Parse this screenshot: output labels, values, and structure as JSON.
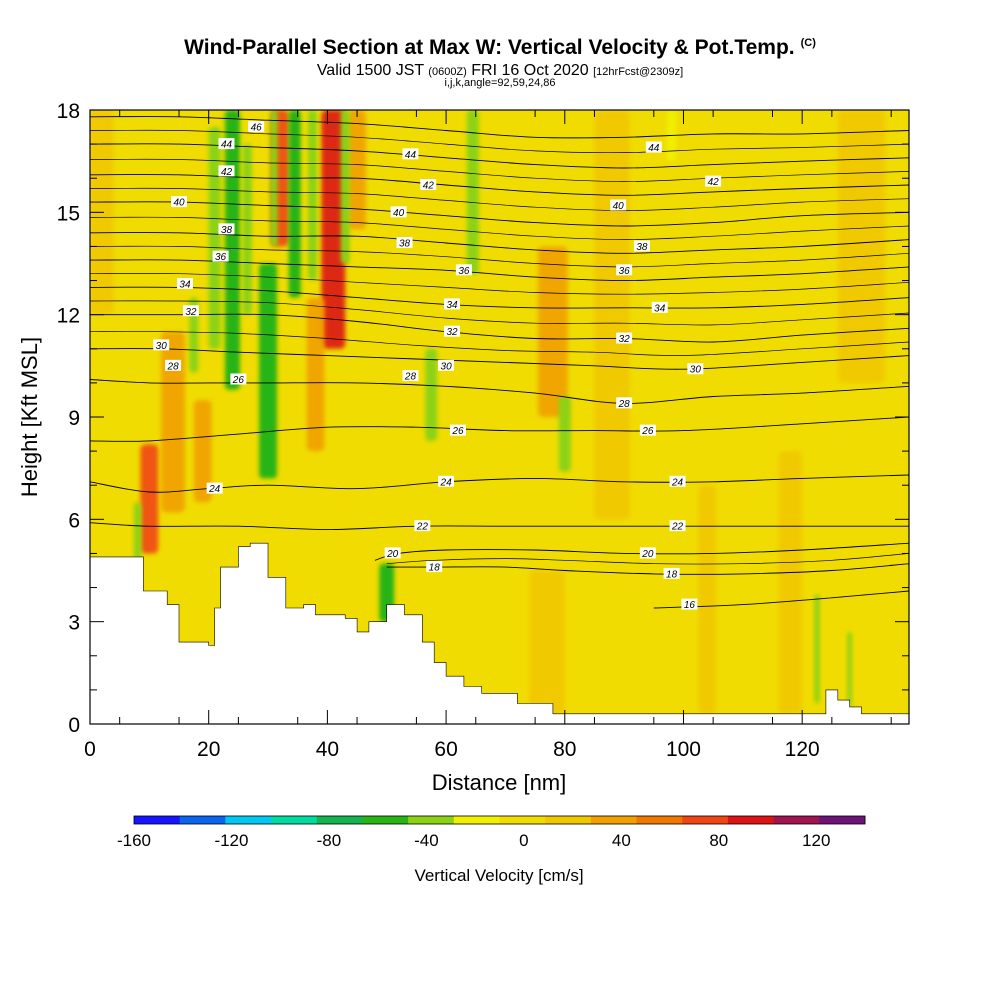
{
  "title": {
    "main": "Wind-Parallel Section at Max W: Vertical Velocity & Pot.Temp.",
    "copyright": "(C)",
    "valid_prefix": "Valid 1500 JST",
    "valid_utc": "(0600Z)",
    "valid_date": "FRI 16 Oct 2020",
    "forecast": "[12hrFcst@2309z]",
    "indices": "i,j,k,angle=92,59,24,86"
  },
  "chart_data": {
    "type": "heatmap",
    "xlabel": "Distance [nm]",
    "ylabel": "Height [Kft MSL]",
    "xlim": [
      0,
      138
    ],
    "ylim": [
      0,
      18
    ],
    "x_ticks": [
      "0",
      "20",
      "40",
      "60",
      "80",
      "100",
      "120"
    ],
    "y_ticks": [
      "0",
      "3",
      "6",
      "9",
      "12",
      "15",
      "18"
    ],
    "colorbar": {
      "label": "Vertical Velocity [cm/s]",
      "tick_labels": [
        "-160",
        "-120",
        "-80",
        "-40",
        "0",
        "40",
        "80",
        "120"
      ],
      "bounds": [
        -160,
        140
      ],
      "colors": [
        "#1414ff",
        "#0a64f0",
        "#00c8f0",
        "#00dca0",
        "#14b450",
        "#28b414",
        "#8cd214",
        "#f0f000",
        "#f0dc00",
        "#f0c800",
        "#f0a000",
        "#f07800",
        "#f04614",
        "#dc1414",
        "#a01450",
        "#6e1478"
      ]
    },
    "terrain": [
      [
        0,
        4.9
      ],
      [
        8,
        4.9
      ],
      [
        9,
        3.9
      ],
      [
        13,
        3.5
      ],
      [
        15,
        2.4
      ],
      [
        20,
        2.3
      ],
      [
        21,
        3.4
      ],
      [
        22,
        4.6
      ],
      [
        25,
        5.2
      ],
      [
        27,
        5.3
      ],
      [
        30,
        4.3
      ],
      [
        33,
        3.4
      ],
      [
        36,
        3.5
      ],
      [
        38,
        3.2
      ],
      [
        40,
        3.2
      ],
      [
        43,
        3.1
      ],
      [
        45,
        2.7
      ],
      [
        47,
        3.0
      ],
      [
        50,
        3.5
      ],
      [
        53,
        3.2
      ],
      [
        56,
        2.4
      ],
      [
        58,
        1.8
      ],
      [
        60,
        1.4
      ],
      [
        63,
        1.1
      ],
      [
        66,
        0.9
      ],
      [
        72,
        0.6
      ],
      [
        78,
        0.3
      ],
      [
        90,
        0.3
      ],
      [
        110,
        0.3
      ],
      [
        122,
        0.3
      ],
      [
        124,
        1.0
      ],
      [
        126,
        0.7
      ],
      [
        128,
        0.5
      ],
      [
        130,
        0.3
      ],
      [
        138,
        0.3
      ]
    ],
    "theta_contours": [
      {
        "label": "16",
        "points": [
          [
            95,
            3.4
          ],
          [
            110,
            3.5
          ],
          [
            125,
            3.7
          ],
          [
            138,
            3.9
          ]
        ]
      },
      {
        "label": "18",
        "points": [
          [
            50,
            4.6
          ],
          [
            58,
            4.6
          ],
          [
            70,
            4.6
          ],
          [
            80,
            4.5
          ],
          [
            95,
            4.4
          ],
          [
            110,
            4.4
          ],
          [
            125,
            4.5
          ],
          [
            138,
            4.7
          ]
        ]
      },
      {
        "label": "20",
        "points": [
          [
            48,
            4.8
          ],
          [
            52,
            5.0
          ],
          [
            60,
            5.1
          ],
          [
            75,
            5.1
          ],
          [
            90,
            5.0
          ],
          [
            105,
            5.0
          ],
          [
            120,
            5.1
          ],
          [
            138,
            5.3
          ]
        ]
      },
      {
        "label": "22",
        "points": [
          [
            0,
            5.9
          ],
          [
            10,
            5.8
          ],
          [
            25,
            5.8
          ],
          [
            40,
            5.7
          ],
          [
            55,
            5.8
          ],
          [
            70,
            5.8
          ],
          [
            85,
            5.8
          ],
          [
            100,
            5.8
          ],
          [
            120,
            5.8
          ],
          [
            138,
            5.8
          ]
        ]
      },
      {
        "label": "24",
        "points": [
          [
            0,
            7.1
          ],
          [
            10,
            6.8
          ],
          [
            20,
            6.9
          ],
          [
            30,
            7.0
          ],
          [
            45,
            6.9
          ],
          [
            60,
            7.1
          ],
          [
            75,
            7.2
          ],
          [
            90,
            7.1
          ],
          [
            105,
            7.1
          ],
          [
            120,
            7.2
          ],
          [
            138,
            7.3
          ]
        ]
      },
      {
        "label": "26",
        "points": [
          [
            0,
            8.3
          ],
          [
            10,
            8.3
          ],
          [
            25,
            8.5
          ],
          [
            40,
            8.7
          ],
          [
            55,
            8.7
          ],
          [
            70,
            8.6
          ],
          [
            85,
            8.6
          ],
          [
            100,
            8.6
          ],
          [
            120,
            8.8
          ],
          [
            138,
            9.0
          ]
        ]
      },
      {
        "label": "28",
        "points": [
          [
            0,
            10.1
          ],
          [
            10,
            10.0
          ],
          [
            20,
            10.0
          ],
          [
            30,
            10.0
          ],
          [
            45,
            10.0
          ],
          [
            60,
            9.9
          ],
          [
            75,
            9.7
          ],
          [
            90,
            9.4
          ],
          [
            105,
            9.6
          ],
          [
            120,
            9.7
          ],
          [
            138,
            9.9
          ]
        ]
      },
      {
        "label": "30",
        "points": [
          [
            0,
            11.0
          ],
          [
            12,
            11.0
          ],
          [
            25,
            10.9
          ],
          [
            40,
            10.8
          ],
          [
            55,
            10.7
          ],
          [
            70,
            10.6
          ],
          [
            85,
            10.5
          ],
          [
            100,
            10.4
          ],
          [
            120,
            10.6
          ],
          [
            138,
            10.8
          ]
        ]
      },
      {
        "label": "32",
        "points": [
          [
            0,
            12.0
          ],
          [
            15,
            12.0
          ],
          [
            30,
            12.0
          ],
          [
            45,
            11.8
          ],
          [
            60,
            11.5
          ],
          [
            75,
            11.3
          ],
          [
            90,
            11.3
          ],
          [
            105,
            11.2
          ],
          [
            120,
            11.4
          ],
          [
            138,
            11.6
          ]
        ]
      },
      {
        "label": "34",
        "points": [
          [
            0,
            12.8
          ],
          [
            15,
            12.8
          ],
          [
            30,
            12.7
          ],
          [
            45,
            12.5
          ],
          [
            60,
            12.3
          ],
          [
            75,
            12.2
          ],
          [
            90,
            12.2
          ],
          [
            105,
            12.2
          ],
          [
            120,
            12.3
          ],
          [
            138,
            12.5
          ]
        ]
      },
      {
        "label": "36",
        "points": [
          [
            0,
            13.6
          ],
          [
            15,
            13.6
          ],
          [
            30,
            13.5
          ],
          [
            45,
            13.4
          ],
          [
            60,
            13.3
          ],
          [
            75,
            13.1
          ],
          [
            90,
            13.0
          ],
          [
            105,
            13.1
          ],
          [
            120,
            13.2
          ],
          [
            138,
            13.4
          ]
        ]
      },
      {
        "label": "38",
        "points": [
          [
            0,
            14.4
          ],
          [
            15,
            14.4
          ],
          [
            30,
            14.3
          ],
          [
            45,
            14.3
          ],
          [
            60,
            14.1
          ],
          [
            75,
            13.9
          ],
          [
            90,
            13.8
          ],
          [
            105,
            13.9
          ],
          [
            120,
            14.0
          ],
          [
            138,
            14.2
          ]
        ]
      },
      {
        "label": "40",
        "points": [
          [
            0,
            15.3
          ],
          [
            15,
            15.3
          ],
          [
            30,
            15.2
          ],
          [
            45,
            15.1
          ],
          [
            60,
            14.9
          ],
          [
            75,
            14.7
          ],
          [
            90,
            14.6
          ],
          [
            105,
            14.7
          ],
          [
            120,
            14.9
          ],
          [
            138,
            15.0
          ]
        ]
      },
      {
        "label": "42",
        "points": [
          [
            0,
            16.1
          ],
          [
            15,
            16.1
          ],
          [
            30,
            16.0
          ],
          [
            45,
            16.0
          ],
          [
            60,
            15.8
          ],
          [
            75,
            15.6
          ],
          [
            90,
            15.5
          ],
          [
            105,
            15.6
          ],
          [
            120,
            15.7
          ],
          [
            138,
            15.8
          ]
        ]
      },
      {
        "label": "44",
        "points": [
          [
            0,
            17.0
          ],
          [
            15,
            17.0
          ],
          [
            30,
            16.9
          ],
          [
            45,
            16.8
          ],
          [
            60,
            16.6
          ],
          [
            75,
            16.4
          ],
          [
            90,
            16.3
          ],
          [
            105,
            16.4
          ],
          [
            120,
            16.5
          ],
          [
            138,
            16.6
          ]
        ]
      },
      {
        "label": "46",
        "points": [
          [
            0,
            17.8
          ],
          [
            15,
            17.8
          ],
          [
            30,
            17.7
          ],
          [
            45,
            17.6
          ],
          [
            60,
            17.4
          ],
          [
            75,
            17.2
          ],
          [
            90,
            17.2
          ],
          [
            105,
            17.3
          ],
          [
            120,
            17.3
          ],
          [
            138,
            17.4
          ]
        ]
      }
    ],
    "contour_labels": [
      {
        "text": "16",
        "x": 101,
        "y": 3.5
      },
      {
        "text": "18",
        "x": 58,
        "y": 4.6
      },
      {
        "text": "18",
        "x": 98,
        "y": 4.4
      },
      {
        "text": "20",
        "x": 51,
        "y": 5.0
      },
      {
        "text": "20",
        "x": 94,
        "y": 5.0
      },
      {
        "text": "22",
        "x": 56,
        "y": 5.8
      },
      {
        "text": "22",
        "x": 99,
        "y": 5.8
      },
      {
        "text": "24",
        "x": 21,
        "y": 6.9
      },
      {
        "text": "24",
        "x": 60,
        "y": 7.1
      },
      {
        "text": "24",
        "x": 99,
        "y": 7.1
      },
      {
        "text": "26",
        "x": 25,
        "y": 10.1
      },
      {
        "text": "26",
        "x": 62,
        "y": 8.6
      },
      {
        "text": "26",
        "x": 94,
        "y": 8.6
      },
      {
        "text": "28",
        "x": 14,
        "y": 10.5
      },
      {
        "text": "28",
        "x": 54,
        "y": 10.2
      },
      {
        "text": "28",
        "x": 90,
        "y": 9.4
      },
      {
        "text": "30",
        "x": 12,
        "y": 11.1
      },
      {
        "text": "30",
        "x": 60,
        "y": 10.5
      },
      {
        "text": "30",
        "x": 102,
        "y": 10.4
      },
      {
        "text": "32",
        "x": 17,
        "y": 12.1
      },
      {
        "text": "32",
        "x": 61,
        "y": 11.5
      },
      {
        "text": "32",
        "x": 90,
        "y": 11.3
      },
      {
        "text": "34",
        "x": 16,
        "y": 12.9
      },
      {
        "text": "34",
        "x": 61,
        "y": 12.3
      },
      {
        "text": "34",
        "x": 96,
        "y": 12.2
      },
      {
        "text": "36",
        "x": 22,
        "y": 13.7
      },
      {
        "text": "36",
        "x": 63,
        "y": 13.3
      },
      {
        "text": "36",
        "x": 90,
        "y": 13.3
      },
      {
        "text": "38",
        "x": 23,
        "y": 14.5
      },
      {
        "text": "38",
        "x": 53,
        "y": 14.1
      },
      {
        "text": "38",
        "x": 93,
        "y": 14.0
      },
      {
        "text": "40",
        "x": 15,
        "y": 15.3
      },
      {
        "text": "40",
        "x": 52,
        "y": 15.0
      },
      {
        "text": "40",
        "x": 89,
        "y": 15.2
      },
      {
        "text": "42",
        "x": 23,
        "y": 16.2
      },
      {
        "text": "42",
        "x": 57,
        "y": 15.8
      },
      {
        "text": "42",
        "x": 105,
        "y": 15.9
      },
      {
        "text": "44",
        "x": 23,
        "y": 17.0
      },
      {
        "text": "44",
        "x": 54,
        "y": 16.7
      },
      {
        "text": "44",
        "x": 95,
        "y": 16.9
      },
      {
        "text": "46",
        "x": 28,
        "y": 17.5
      }
    ],
    "updraft_bands": [
      {
        "x": 10,
        "y0": 5.0,
        "y1": 8.2,
        "w": 3.0,
        "value": 70
      },
      {
        "x": 14,
        "y0": 6.2,
        "y1": 11.5,
        "w": 4.0,
        "value": 40
      },
      {
        "x": 19,
        "y0": 6.5,
        "y1": 9.5,
        "w": 3.0,
        "value": 30
      },
      {
        "x": 32,
        "y0": 14.0,
        "y1": 18,
        "w": 3.0,
        "value": 70
      },
      {
        "x": 41,
        "y0": 11.0,
        "y1": 18,
        "w": 4.0,
        "value": 85
      },
      {
        "x": 45,
        "y0": 14.5,
        "y1": 18,
        "w": 3.0,
        "value": 40
      },
      {
        "x": 38,
        "y0": 8.0,
        "y1": 12.5,
        "w": 3.0,
        "value": 30
      },
      {
        "x": 78,
        "y0": 9.0,
        "y1": 14.0,
        "w": 5.0,
        "value": 30
      },
      {
        "x": 77,
        "y0": 0.3,
        "y1": 4.5,
        "w": 6.0,
        "value": 25
      },
      {
        "x": 104,
        "y0": 0.3,
        "y1": 7.0,
        "w": 3.0,
        "value": 25
      },
      {
        "x": 118,
        "y0": 0.3,
        "y1": 8.0,
        "w": 4.0,
        "value": 25
      },
      {
        "x": 88,
        "y0": 6.0,
        "y1": 18.0,
        "w": 6.0,
        "value": 22
      },
      {
        "x": 130,
        "y0": 10.0,
        "y1": 18.0,
        "w": 8.0,
        "value": 25
      },
      {
        "x": 2,
        "y0": 12.0,
        "y1": 18.0,
        "w": 4.0,
        "value": 25
      }
    ],
    "downdraft_bands": [
      {
        "x": 8,
        "y0": 4.6,
        "y1": 6.5,
        "w": 1.2,
        "value": -35
      },
      {
        "x": 17.5,
        "y0": 10.3,
        "y1": 12.5,
        "w": 1.5,
        "value": -30
      },
      {
        "x": 21,
        "y0": 11.0,
        "y1": 17.5,
        "w": 2.0,
        "value": -40
      },
      {
        "x": 24,
        "y0": 9.8,
        "y1": 18,
        "w": 2.5,
        "value": -55
      },
      {
        "x": 26.5,
        "y0": 12.0,
        "y1": 17.0,
        "w": 1.5,
        "value": -35
      },
      {
        "x": 30,
        "y0": 7.2,
        "y1": 13.5,
        "w": 3.0,
        "value": -60
      },
      {
        "x": 31,
        "y0": 14.0,
        "y1": 18,
        "w": 1.2,
        "value": -40
      },
      {
        "x": 34.5,
        "y0": 12.5,
        "y1": 18,
        "w": 2.0,
        "value": -55
      },
      {
        "x": 37.5,
        "y0": 13.0,
        "y1": 18,
        "w": 1.5,
        "value": -45
      },
      {
        "x": 43,
        "y0": 13.5,
        "y1": 18,
        "w": 1.5,
        "value": -40
      },
      {
        "x": 57.5,
        "y0": 8.3,
        "y1": 11.0,
        "w": 2.0,
        "value": -40
      },
      {
        "x": 64.5,
        "y0": 13.2,
        "y1": 18,
        "w": 2.0,
        "value": -45
      },
      {
        "x": 80,
        "y0": 7.4,
        "y1": 9.6,
        "w": 2.0,
        "value": -40
      },
      {
        "x": 50,
        "y0": 3.0,
        "y1": 4.7,
        "w": 2.5,
        "value": -55
      },
      {
        "x": 122.5,
        "y0": 0.6,
        "y1": 3.8,
        "w": 0.9,
        "value": -35
      },
      {
        "x": 128,
        "y0": 0.5,
        "y1": 2.7,
        "w": 0.8,
        "value": -30
      },
      {
        "x": 98,
        "y0": 16.5,
        "y1": 18,
        "w": 1.5,
        "value": -25
      }
    ],
    "grid": false
  }
}
